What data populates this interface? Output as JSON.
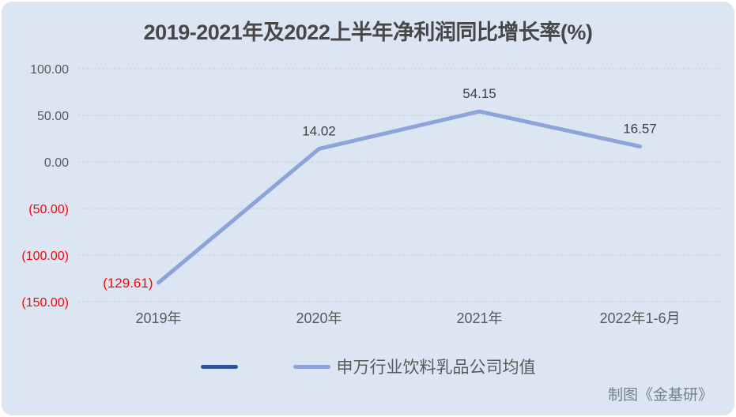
{
  "credit": "制图《金基研》",
  "colors": {
    "background": "#dbe6f2",
    "grid": "#c9ced6",
    "axis_text": "#595959",
    "negative_text": "#ff0000",
    "data_label_text": "#404040",
    "line": "#8ea3d9",
    "legend_dark": "#2f5597",
    "title_text": "#474747",
    "credit_text": "#75828f"
  },
  "chart_data": {
    "type": "line",
    "title": "2019-2021年及2022上半年净利润同比增长率(%)",
    "categories": [
      "2019年",
      "2020年",
      "2021年",
      "2022年1-6月"
    ],
    "series": [
      {
        "name": "",
        "color": "#2f5597",
        "values": []
      },
      {
        "name": "申万行业饮料乳品公司均值",
        "color": "#8ea3d9",
        "values": [
          -129.61,
          14.02,
          54.15,
          16.57
        ],
        "labels": [
          {
            "text": "(129.61)",
            "color": "#ff0000",
            "placement": "left"
          },
          {
            "text": "14.02",
            "color": "#404040",
            "placement": "above"
          },
          {
            "text": "54.15",
            "color": "#404040",
            "placement": "above"
          },
          {
            "text": "16.57",
            "color": "#404040",
            "placement": "above"
          }
        ]
      }
    ],
    "ylim": [
      -150,
      100
    ],
    "y_ticks": [
      {
        "value": 100,
        "label": "100.00",
        "negative": false
      },
      {
        "value": 50,
        "label": "50.00",
        "negative": false
      },
      {
        "value": 0,
        "label": "0.00",
        "negative": false
      },
      {
        "value": -50,
        "label": "(50.00)",
        "negative": true
      },
      {
        "value": -100,
        "label": "(100.00)",
        "negative": true
      },
      {
        "value": -150,
        "label": "(150.00)",
        "negative": true
      }
    ],
    "grid": true,
    "legend_position": "bottom"
  }
}
